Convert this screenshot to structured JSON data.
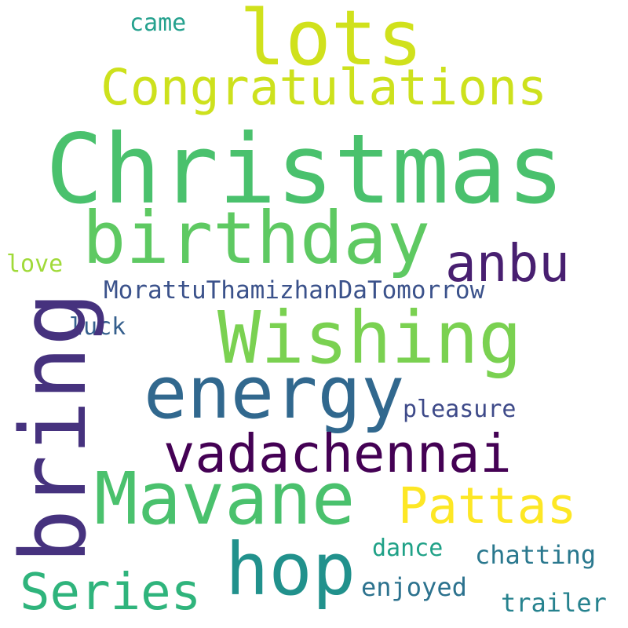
{
  "words": [
    {
      "key": "christmas",
      "text": "Christmas",
      "color": "#4AC16D"
    },
    {
      "key": "lots",
      "text": "lots",
      "color": "#D0E11C"
    },
    {
      "key": "congratulations",
      "text": "Congratulations",
      "color": "#CDE11D"
    },
    {
      "key": "came",
      "text": "came",
      "color": "#25A18E"
    },
    {
      "key": "birthday",
      "text": "birthday",
      "color": "#5EC962"
    },
    {
      "key": "anbu",
      "text": "anbu",
      "color": "#481F70"
    },
    {
      "key": "love",
      "text": "love",
      "color": "#A0DA39"
    },
    {
      "key": "moratthu",
      "text": "MorattuThamizhanDaTomorrow",
      "color": "#3B528B"
    },
    {
      "key": "luck",
      "text": "luck",
      "color": "#355F8D"
    },
    {
      "key": "wishing",
      "text": "Wishing",
      "color": "#7AD151"
    },
    {
      "key": "bring",
      "text": "bring",
      "color": "#46327E"
    },
    {
      "key": "energy",
      "text": "energy",
      "color": "#31688E"
    },
    {
      "key": "pleasure",
      "text": "pleasure",
      "color": "#3E4A89"
    },
    {
      "key": "vadachennai",
      "text": "vadachennai",
      "color": "#440154"
    },
    {
      "key": "mavane",
      "text": "Mavane",
      "color": "#4AC16D"
    },
    {
      "key": "pattas",
      "text": "Pattas",
      "color": "#FDE725"
    },
    {
      "key": "hop",
      "text": "hop",
      "color": "#21918C"
    },
    {
      "key": "series",
      "text": "Series",
      "color": "#2FB47C"
    },
    {
      "key": "dance",
      "text": "dance",
      "color": "#1FA187"
    },
    {
      "key": "chatting",
      "text": "chatting",
      "color": "#2A788E"
    },
    {
      "key": "enjoyed",
      "text": "enjoyed",
      "color": "#2C728E"
    },
    {
      "key": "trailer",
      "text": "trailer",
      "color": "#26828E"
    }
  ]
}
